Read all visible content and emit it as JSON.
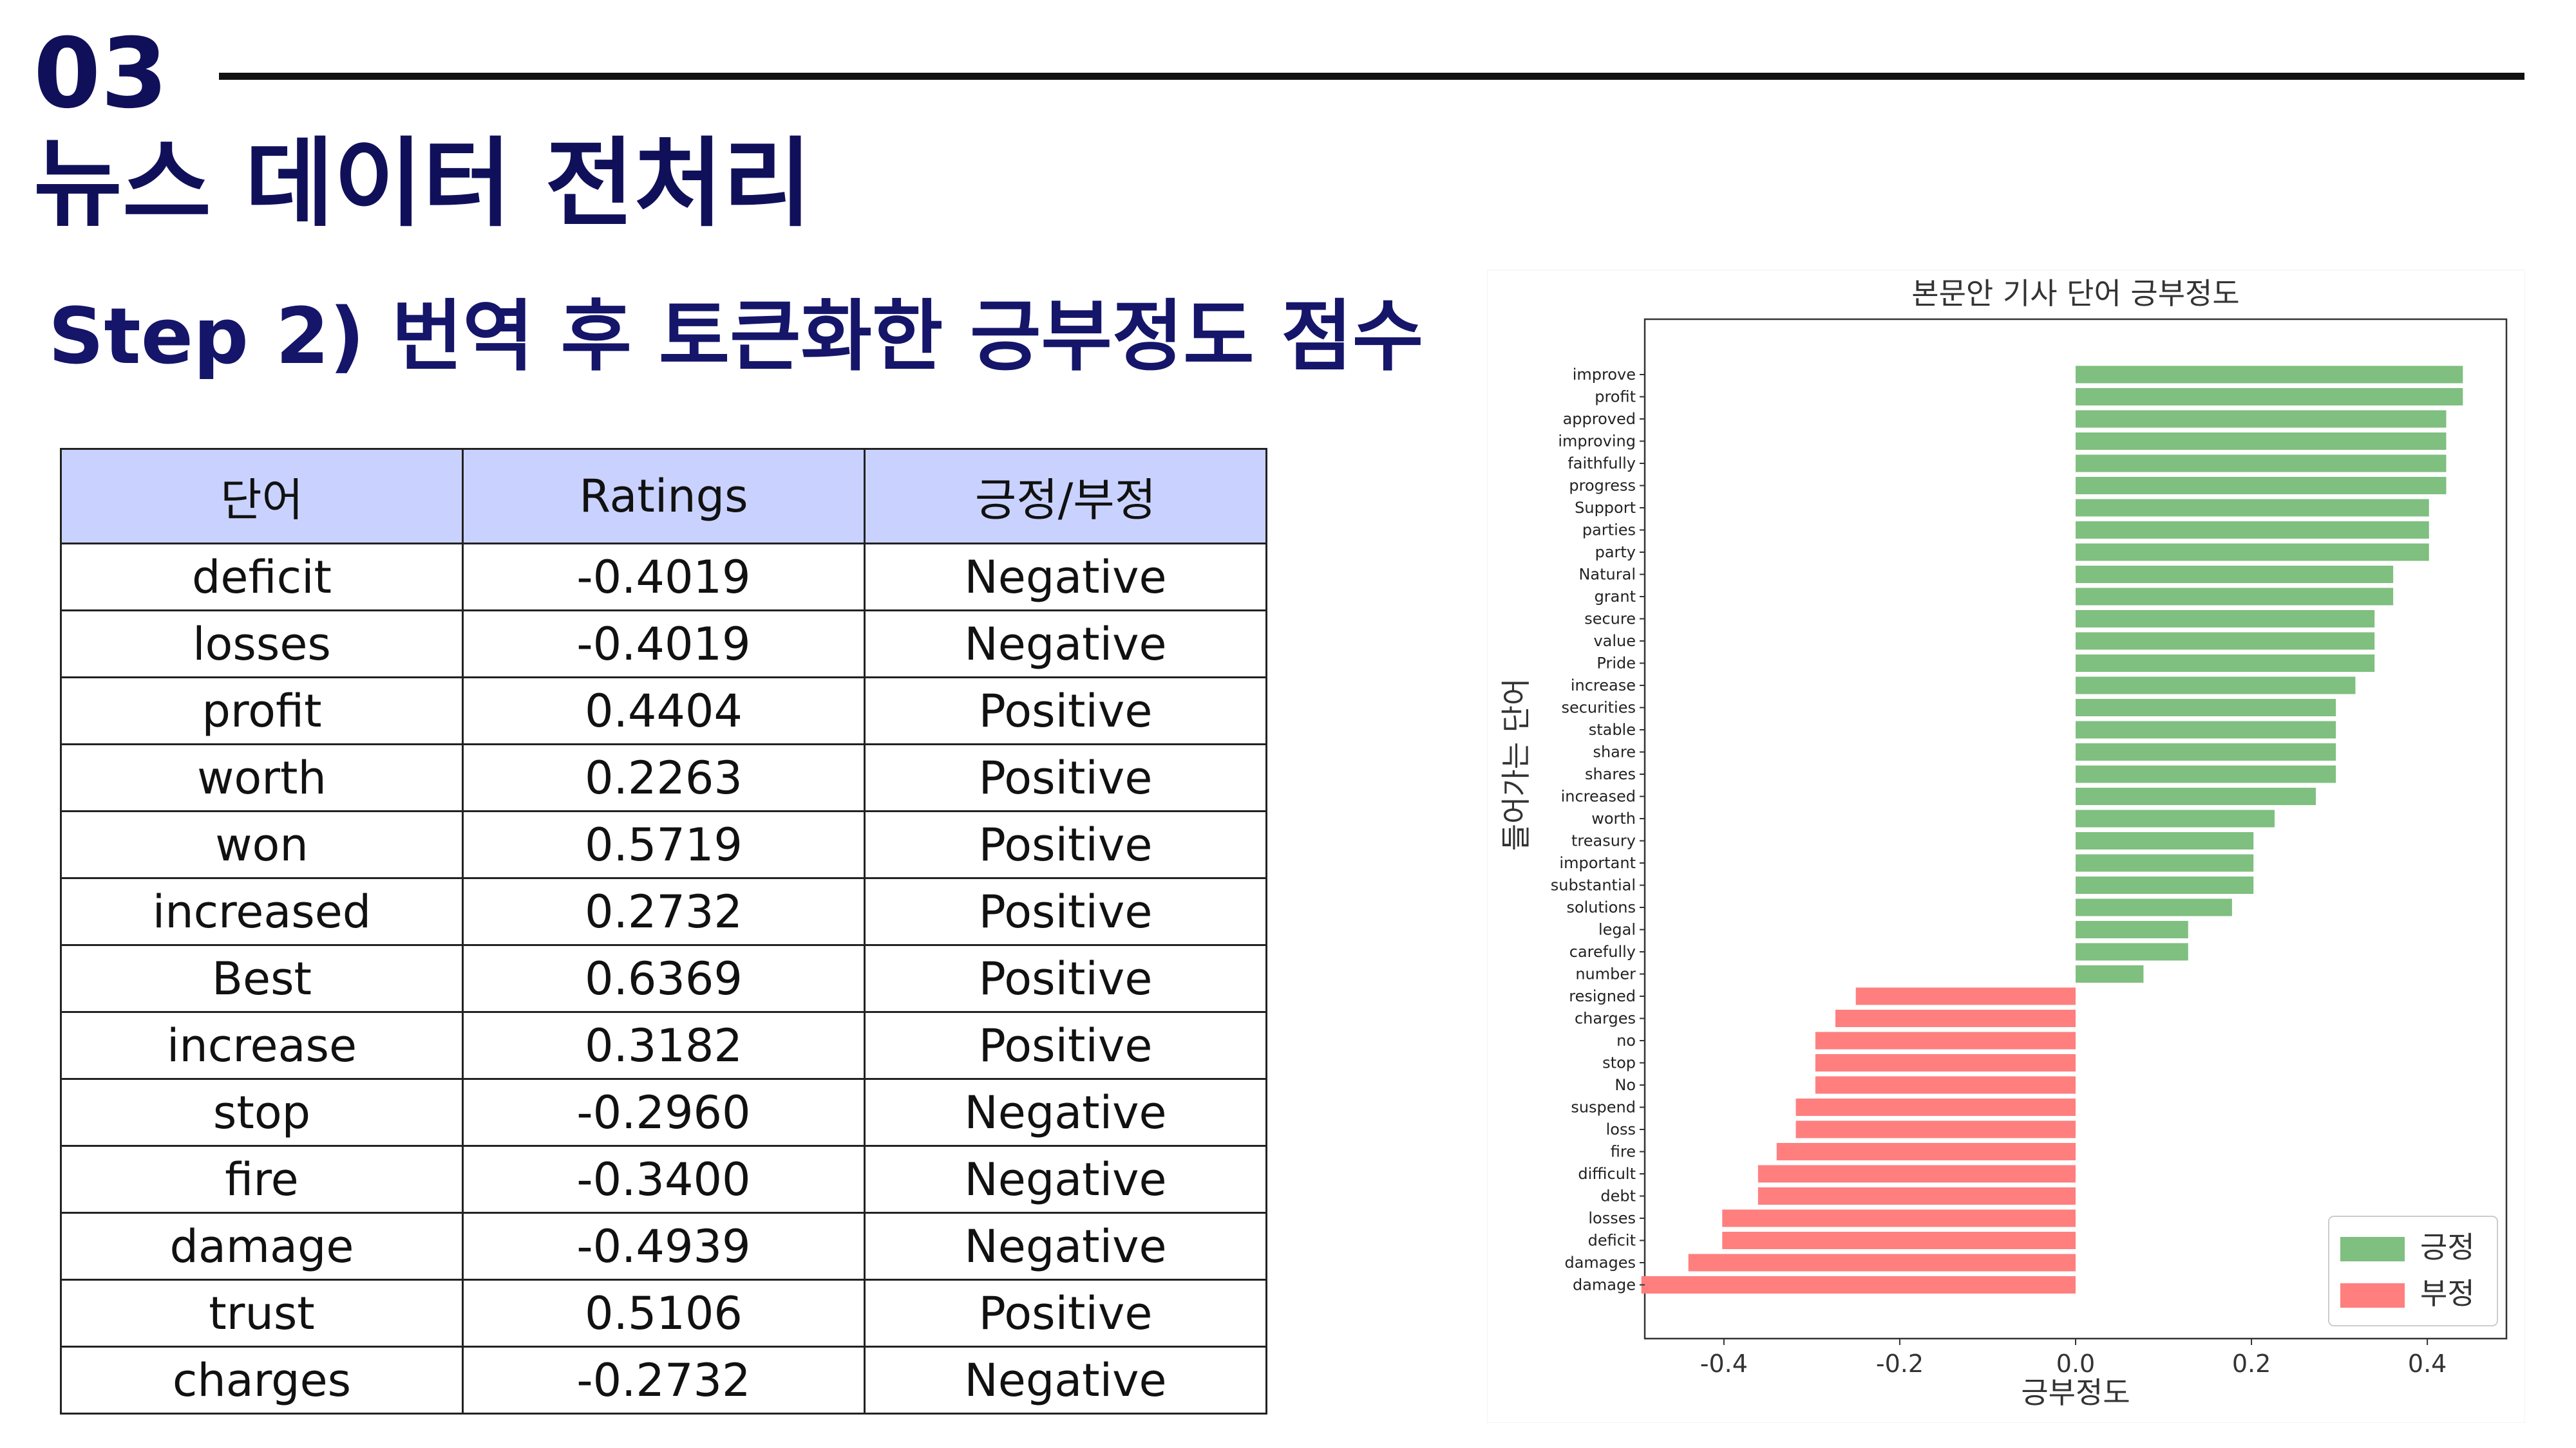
{
  "header": {
    "section_number": "03",
    "title": "뉴스 데이터 전처리"
  },
  "step_title": "Step 2) 번역 후 토큰화한 긍부정도 점수",
  "table": {
    "headers": [
      "단어",
      "Ratings",
      "긍정/부정"
    ],
    "rows": [
      [
        "deficit",
        "-0.4019",
        "Negative"
      ],
      [
        "losses",
        "-0.4019",
        "Negative"
      ],
      [
        "profit",
        "0.4404",
        "Positive"
      ],
      [
        "worth",
        "0.2263",
        "Positive"
      ],
      [
        "won",
        "0.5719",
        "Positive"
      ],
      [
        "increased",
        "0.2732",
        "Positive"
      ],
      [
        "Best",
        "0.6369",
        "Positive"
      ],
      [
        "increase",
        "0.3182",
        "Positive"
      ],
      [
        "stop",
        "-0.2960",
        "Negative"
      ],
      [
        "fire",
        "-0.3400",
        "Negative"
      ],
      [
        "damage",
        "-0.4939",
        "Negative"
      ],
      [
        "trust",
        "0.5106",
        "Positive"
      ],
      [
        "charges",
        "-0.2732",
        "Negative"
      ]
    ],
    "header_bg": "#c9d2ff"
  },
  "chart_data": {
    "type": "bar",
    "orientation": "horizontal",
    "title": "본문안 기사 단어 긍부정도",
    "xlabel": "긍부정도",
    "ylabel": "들어가는 단어",
    "xlim": [
      -0.49,
      0.49
    ],
    "xticks": [
      -0.4,
      -0.2,
      0.0,
      0.2,
      0.4
    ],
    "xtick_labels": [
      "-0.4",
      "-0.2",
      "0.0",
      "0.2",
      "0.4"
    ],
    "legend_position": "bottom-right",
    "colors": {
      "positive": "#7fbf7f",
      "negative": "#ff7f7f"
    },
    "series": [
      {
        "name": "긍정",
        "color": "#7fbf7f"
      },
      {
        "name": "부정",
        "color": "#ff7f7f"
      }
    ],
    "categories": [
      "improve",
      "profit",
      "approved",
      "improving",
      "faithfully",
      "progress",
      "Support",
      "parties",
      "party",
      "Natural",
      "grant",
      "secure",
      "value",
      "Pride",
      "increase",
      "securities",
      "stable",
      "share",
      "shares",
      "increased",
      "worth",
      "treasury",
      "important",
      "substantial",
      "solutions",
      "legal",
      "carefully",
      "number",
      "resigned",
      "charges",
      "no",
      "stop",
      "No",
      "suspend",
      "loss",
      "fire",
      "difficult",
      "debt",
      "losses",
      "deficit",
      "damages",
      "damage"
    ],
    "values": [
      0.4404,
      0.4404,
      0.4215,
      0.4215,
      0.4215,
      0.4215,
      0.4019,
      0.4019,
      0.4019,
      0.3612,
      0.3612,
      0.34,
      0.34,
      0.34,
      0.3182,
      0.296,
      0.296,
      0.296,
      0.296,
      0.2732,
      0.2263,
      0.2023,
      0.2023,
      0.2023,
      0.1779,
      0.128,
      0.128,
      0.0772,
      -0.25,
      -0.2732,
      -0.296,
      -0.296,
      -0.296,
      -0.3182,
      -0.3182,
      -0.34,
      -0.3612,
      -0.3612,
      -0.4019,
      -0.4019,
      -0.4404,
      -0.4939
    ]
  }
}
